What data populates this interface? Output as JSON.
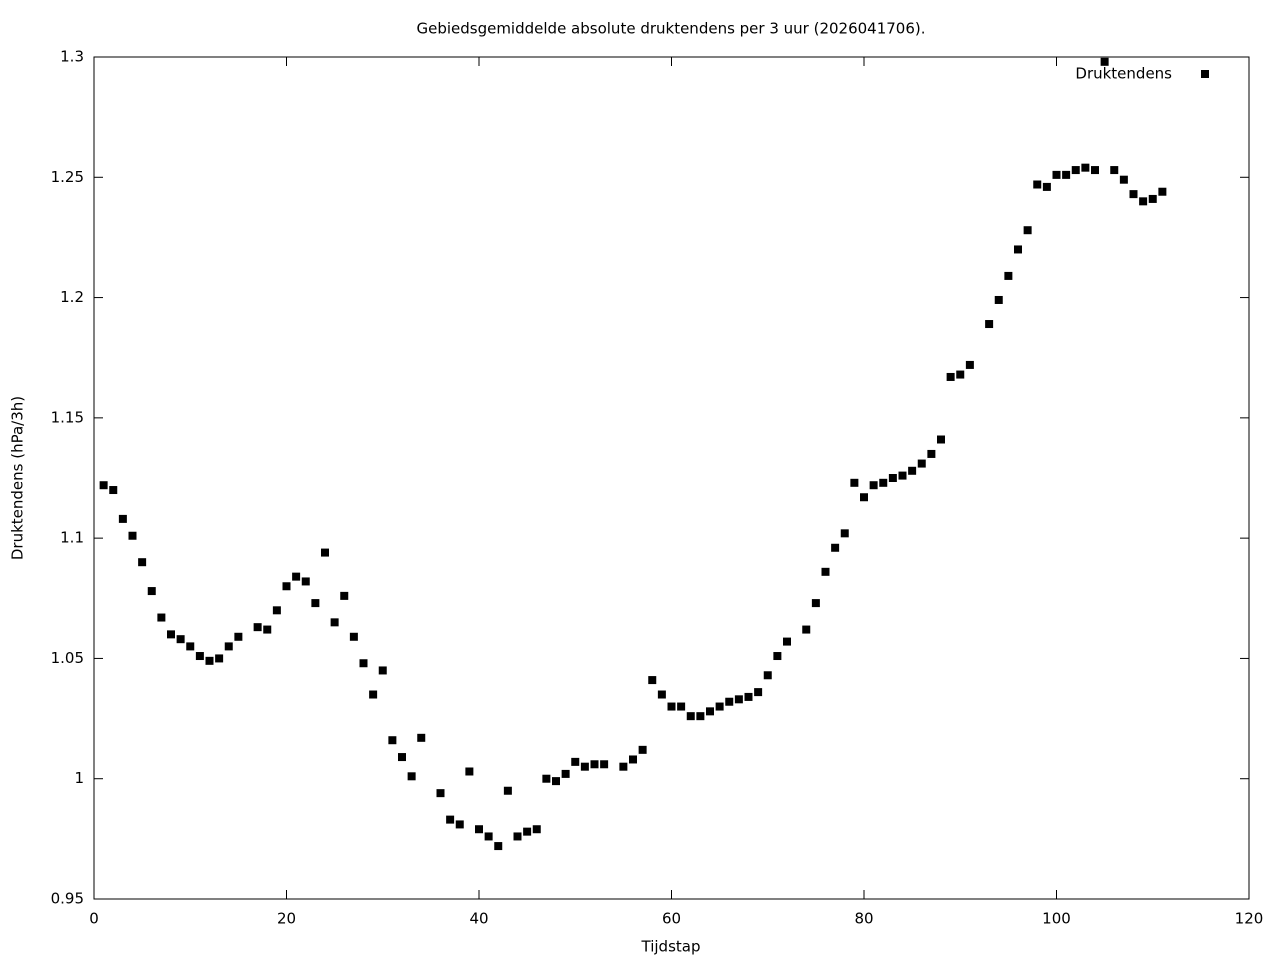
{
  "chart_data": {
    "type": "scatter",
    "title": "Gebiedsgemiddelde absolute druktendens per 3 uur (2026041706).",
    "x_label": "Tijdstap",
    "y_label": "Druktendens (hPa/3h)",
    "legend_position": "top-right",
    "grid": false,
    "xlim": [
      0,
      120
    ],
    "xticks": [
      0,
      20,
      40,
      60,
      80,
      100,
      120
    ],
    "ylim": [
      0.95,
      1.3
    ],
    "yticks": [
      0.95,
      1,
      1.05,
      1.1,
      1.15,
      1.2,
      1.25,
      1.3
    ],
    "series": [
      {
        "name": "Druktendens",
        "color": "#000000",
        "x": [
          1,
          2,
          3,
          4,
          5,
          6,
          7,
          8,
          9,
          10,
          11,
          12,
          13,
          14,
          15,
          17,
          18,
          19,
          20,
          21,
          22,
          23,
          24,
          25,
          26,
          27,
          28,
          29,
          30,
          31,
          32,
          33,
          34,
          36,
          37,
          38,
          39,
          40,
          41,
          42,
          43,
          44,
          45,
          46,
          47,
          48,
          49,
          50,
          51,
          52,
          53,
          55,
          56,
          57,
          58,
          59,
          60,
          61,
          62,
          63,
          64,
          65,
          66,
          67,
          68,
          69,
          70,
          71,
          72,
          74,
          75,
          76,
          77,
          78,
          79,
          80,
          81,
          82,
          83,
          84,
          85,
          86,
          87,
          88,
          89,
          90,
          91,
          93,
          94,
          95,
          96,
          97,
          98,
          99,
          100,
          101,
          102,
          103,
          104,
          105,
          106,
          107,
          108,
          109,
          110,
          111
        ],
        "values": [
          1.122,
          1.12,
          1.108,
          1.101,
          1.09,
          1.078,
          1.067,
          1.06,
          1.058,
          1.055,
          1.051,
          1.049,
          1.05,
          1.055,
          1.059,
          1.063,
          1.062,
          1.07,
          1.08,
          1.084,
          1.082,
          1.073,
          1.094,
          1.065,
          1.076,
          1.059,
          1.048,
          1.035,
          1.045,
          1.016,
          1.009,
          1.001,
          1.017,
          0.994,
          0.983,
          0.981,
          1.003,
          0.979,
          0.976,
          0.972,
          0.995,
          0.976,
          0.978,
          0.979,
          1.0,
          0.999,
          1.002,
          1.007,
          1.005,
          1.006,
          1.006,
          1.005,
          1.008,
          1.012,
          1.041,
          1.035,
          1.03,
          1.03,
          1.026,
          1.026,
          1.028,
          1.03,
          1.032,
          1.033,
          1.034,
          1.036,
          1.043,
          1.051,
          1.057,
          1.062,
          1.073,
          1.086,
          1.096,
          1.102,
          1.123,
          1.117,
          1.122,
          1.123,
          1.125,
          1.126,
          1.128,
          1.131,
          1.135,
          1.141,
          1.167,
          1.168,
          1.172,
          1.189,
          1.199,
          1.209,
          1.22,
          1.228,
          1.247,
          1.246,
          1.251,
          1.251,
          1.253,
          1.254,
          1.253,
          1.298,
          1.253,
          1.249,
          1.243,
          1.24,
          1.241,
          1.244
        ]
      }
    ]
  }
}
